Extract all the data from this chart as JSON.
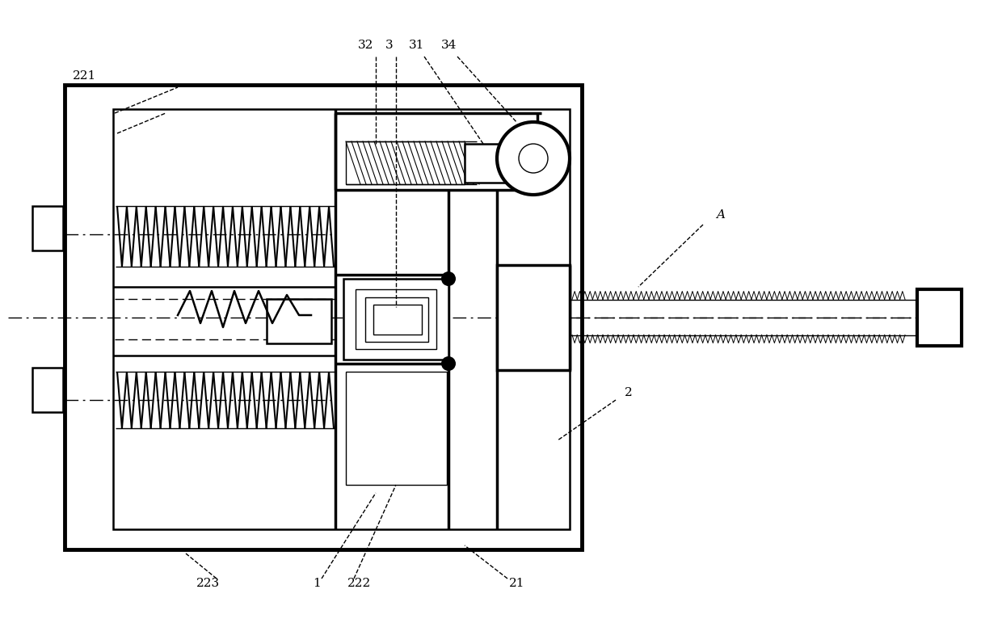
{
  "bg_color": "#ffffff",
  "line_color": "#000000",
  "fig_width": 12.4,
  "fig_height": 7.71,
  "ann_fs": 11,
  "lw_main": 2.5,
  "lw_med": 1.8,
  "lw_thin": 1.0
}
